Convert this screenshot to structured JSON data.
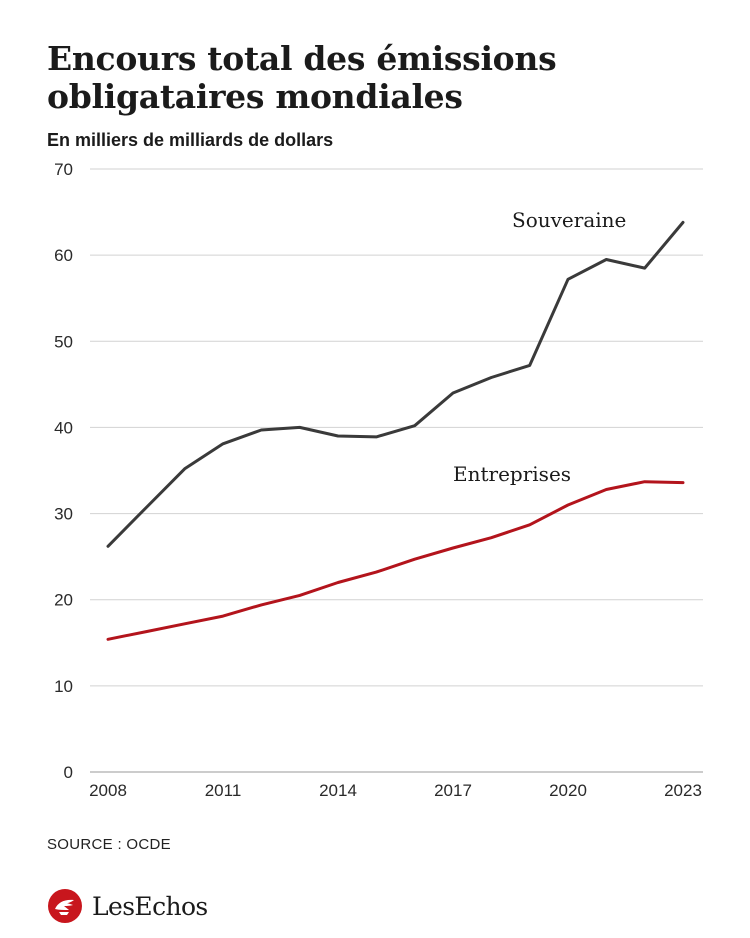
{
  "chart_data": {
    "type": "line",
    "title": "Encours total des émissions obligataires mondiales",
    "subtitle": "En milliers de milliards de dollars",
    "xlabel": "",
    "ylabel": "",
    "x": [
      2008,
      2009,
      2010,
      2011,
      2012,
      2013,
      2014,
      2015,
      2016,
      2017,
      2018,
      2019,
      2020,
      2021,
      2022,
      2023
    ],
    "x_ticks": [
      "2008",
      "2011",
      "2014",
      "2017",
      "2020",
      "2023"
    ],
    "y_ticks": [
      "0",
      "10",
      "20",
      "30",
      "40",
      "50",
      "60",
      "70"
    ],
    "ylim": [
      0,
      70
    ],
    "grid": "horizontal",
    "series": [
      {
        "name": "Souveraine",
        "color": "#3a3a3a",
        "values": [
          26.2,
          30.7,
          35.2,
          38.1,
          39.7,
          40.0,
          39.0,
          38.9,
          40.2,
          44.0,
          45.8,
          47.2,
          57.2,
          59.5,
          58.5,
          63.8
        ]
      },
      {
        "name": "Entreprises",
        "color": "#b3141c",
        "values": [
          15.4,
          16.3,
          17.2,
          18.1,
          19.4,
          20.5,
          22.0,
          23.2,
          24.7,
          26.0,
          27.2,
          28.7,
          31.0,
          32.8,
          33.7,
          33.6
        ]
      }
    ]
  },
  "source": "SOURCE : OCDE",
  "brand": {
    "name": "LesEchos",
    "icon": "les-echos-logo-icon",
    "accent": "#c8161d"
  }
}
